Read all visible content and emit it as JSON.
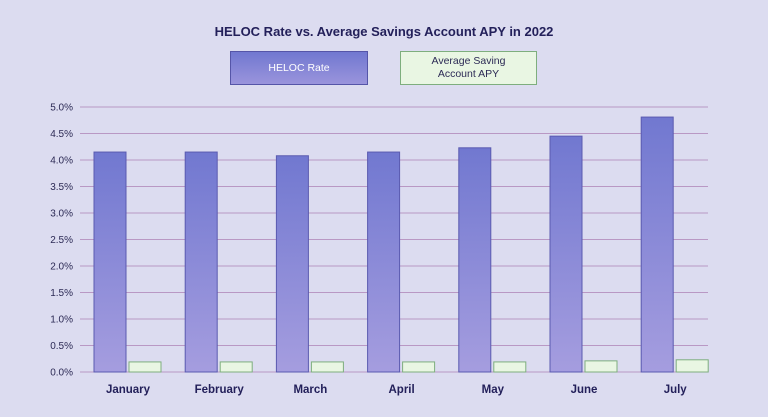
{
  "chart_data": {
    "type": "bar",
    "title": "HELOC Rate vs. Average Savings Account APY in 2022",
    "categories": [
      "January",
      "February",
      "March",
      "April",
      "May",
      "June",
      "July"
    ],
    "series": [
      {
        "name": "HELOC Rate",
        "values": [
          4.15,
          4.15,
          4.08,
          4.15,
          4.23,
          4.45,
          4.81
        ]
      },
      {
        "name": "Average Saving Account APY",
        "values": [
          0.19,
          0.19,
          0.19,
          0.19,
          0.19,
          0.21,
          0.23
        ]
      }
    ],
    "yticks": [
      "0.0%",
      "0.5%",
      "1.0%",
      "1.5%",
      "2.0%",
      "2.5%",
      "3.0%",
      "3.5%",
      "4.0%",
      "4.5%",
      "5.0%"
    ],
    "ylim": [
      0,
      5
    ],
    "grid": true,
    "legend_position": "top-center",
    "colors": {
      "heloc_top": "#7178d0",
      "heloc_bottom": "#a59ddf",
      "heloc_border": "#5a5ab0",
      "savings_fill": "#e9f6e3",
      "savings_border": "#7eae7e",
      "grid": "#b998c4",
      "background": "#dcdcf0"
    }
  }
}
